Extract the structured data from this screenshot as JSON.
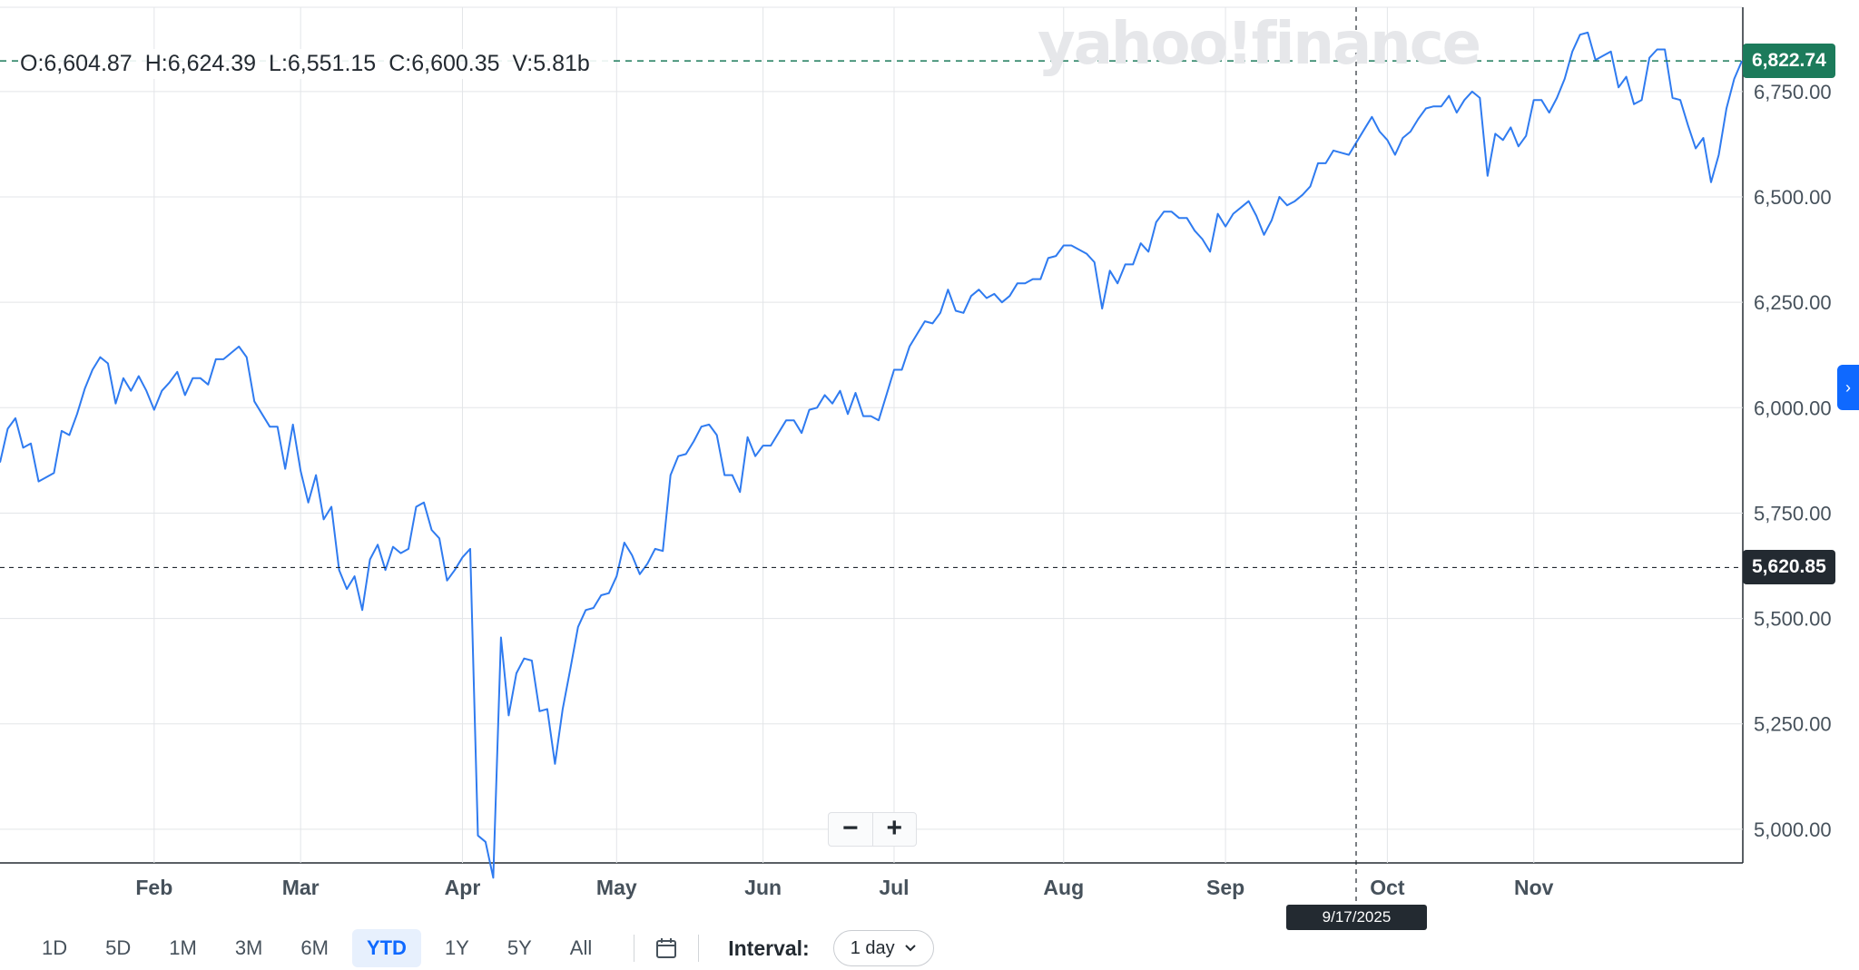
{
  "ohlc": {
    "open": "O:6,604.87",
    "high": "H:6,624.39",
    "low": "L:6,551.15",
    "close": "C:6,600.35",
    "volume": "V:5.81b"
  },
  "watermark": "yahoo!finance",
  "chart_data": {
    "type": "line",
    "series": [
      {
        "color": "#2f7bf0",
        "values": [
          5870,
          5950,
          5975,
          5905,
          5915,
          5825,
          5835,
          5845,
          5945,
          5935,
          5985,
          6045,
          6090,
          6120,
          6105,
          6010,
          6070,
          6040,
          6075,
          6040,
          5995,
          6040,
          6060,
          6085,
          6030,
          6070,
          6070,
          6055,
          6115,
          6115,
          6130,
          6145,
          6120,
          6015,
          5985,
          5955,
          5955,
          5855,
          5960,
          5850,
          5775,
          5840,
          5735,
          5765,
          5615,
          5570,
          5600,
          5520,
          5640,
          5675,
          5615,
          5670,
          5655,
          5665,
          5765,
          5775,
          5710,
          5690,
          5590,
          5615,
          5645,
          5665,
          4985,
          4970,
          4885,
          5455,
          5270,
          5370,
          5405,
          5400,
          5280,
          5285,
          5155,
          5285,
          5380,
          5480,
          5520,
          5525,
          5555,
          5560,
          5600,
          5680,
          5650,
          5605,
          5630,
          5665,
          5660,
          5840,
          5885,
          5890,
          5920,
          5955,
          5960,
          5935,
          5840,
          5840,
          5800,
          5930,
          5885,
          5910,
          5910,
          5940,
          5970,
          5970,
          5940,
          5995,
          6000,
          6030,
          6010,
          6040,
          5985,
          6035,
          5980,
          5980,
          5970,
          6030,
          6090,
          6090,
          6145,
          6175,
          6205,
          6200,
          6225,
          6280,
          6230,
          6225,
          6265,
          6280,
          6260,
          6270,
          6250,
          6265,
          6295,
          6295,
          6305,
          6305,
          6355,
          6360,
          6385,
          6385,
          6375,
          6365,
          6345,
          6235,
          6325,
          6295,
          6340,
          6340,
          6390,
          6370,
          6440,
          6465,
          6465,
          6450,
          6450,
          6420,
          6400,
          6370,
          6460,
          6430,
          6460,
          6475,
          6490,
          6455,
          6410,
          6445,
          6500,
          6480,
          6490,
          6505,
          6525,
          6580,
          6580,
          6610,
          6605,
          6600,
          6630,
          6660,
          6690,
          6655,
          6635,
          6600,
          6640,
          6655,
          6685,
          6710,
          6715,
          6715,
          6740,
          6700,
          6730,
          6750,
          6735,
          6550,
          6650,
          6635,
          6665,
          6620,
          6645,
          6730,
          6730,
          6700,
          6735,
          6780,
          6845,
          6885,
          6890,
          6825,
          6835,
          6845,
          6760,
          6785,
          6720,
          6730,
          6830,
          6850,
          6850,
          6735,
          6730,
          6670,
          6615,
          6640,
          6535,
          6600,
          6710,
          6780,
          6822.74
        ]
      }
    ],
    "x_labels": [
      "Feb",
      "Mar",
      "Apr",
      "May",
      "Jun",
      "Jul",
      "Aug",
      "Sep",
      "Oct",
      "Nov"
    ],
    "ylim": [
      4920,
      6950
    ],
    "y_ticks": [
      5000,
      5250,
      5500,
      5750,
      6000,
      6250,
      6500,
      6750
    ],
    "y_tick_labels": [
      "5,000.00",
      "5,250.00",
      "5,500.00",
      "5,750.00",
      "6,000.00",
      "6,250.00",
      "6,500.00",
      "6,750.00"
    ],
    "last_price": 6822.74,
    "last_price_label": "6,822.74",
    "crosshair_price": 5620.85,
    "crosshair_price_label": "5,620.85",
    "crosshair_date": "9/17/2025",
    "grid": true
  },
  "controls": {
    "ranges": [
      "1D",
      "5D",
      "1M",
      "3M",
      "6M",
      "YTD",
      "1Y",
      "5Y",
      "All"
    ],
    "active_range": "YTD",
    "interval_label": "Interval:",
    "interval_value": "1 day"
  },
  "colors": {
    "line": "#2f7bf0",
    "last_price_bg": "#1c7b5b",
    "crosshair_bg": "#232a31",
    "active_range": "#0f69ff"
  },
  "icons": {
    "zoom_out": "minus-icon",
    "zoom_in": "plus-icon",
    "calendar": "calendar-icon",
    "chevron": "chevron-down-icon",
    "side_panel": "chevron-right-icon"
  }
}
